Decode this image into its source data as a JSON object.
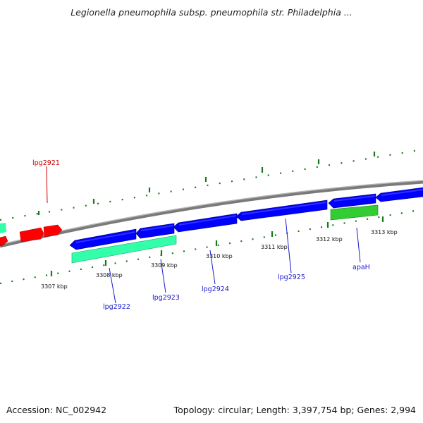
{
  "title": "Legionella pneumophila subsp. pneumophila str. Philadelphia ...",
  "footer": {
    "accession": "Accession: NC_002942",
    "summary": "Topology: circular; Length: 3,397,754 bp; Genes: 2,994"
  },
  "colors": {
    "backbone": "#7a7a7a",
    "forward_gene": "#ff0000",
    "reverse_gene": "#0000ff",
    "pseudo_gene": "#33ffaa",
    "rna_gene": "#22bb22",
    "tick": "#1a7a1a",
    "label_red": "#cc0000",
    "label_blue": "#1a1acc"
  },
  "ticks": [
    {
      "label": "3307 kbp"
    },
    {
      "label": "3308 kbp"
    },
    {
      "label": "3309 kbp"
    },
    {
      "label": "3310 kbp"
    },
    {
      "label": "3311 kbp"
    },
    {
      "label": "3312 kbp"
    },
    {
      "label": "3313 kbp"
    }
  ],
  "genes": [
    {
      "name": "lpg2921",
      "strand": "forward",
      "color": "red"
    },
    {
      "name": "lpg2922",
      "strand": "reverse",
      "color": "blue"
    },
    {
      "name": "lpg2923",
      "strand": "reverse",
      "color": "blue"
    },
    {
      "name": "lpg2924",
      "strand": "reverse",
      "color": "blue"
    },
    {
      "name": "lpg2925",
      "strand": "reverse",
      "color": "blue"
    },
    {
      "name": "apaH",
      "strand": "reverse",
      "color": "blue"
    }
  ]
}
